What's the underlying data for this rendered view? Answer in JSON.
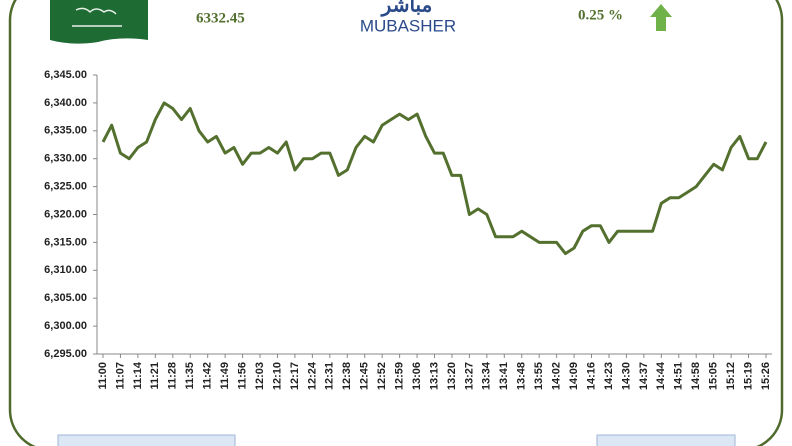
{
  "header": {
    "index_value": "6332.45",
    "logo_arabic": "مباشر",
    "logo_text": "MUBASHER",
    "change": "0.25 %"
  },
  "chart_data": {
    "type": "line",
    "categories": [
      "11:00",
      null,
      "11:07",
      null,
      "11:14",
      null,
      "11:21",
      null,
      "11:28",
      null,
      "11:35",
      null,
      "11:42",
      null,
      "11:49",
      null,
      "11:56",
      null,
      "12:03",
      null,
      "12:10",
      null,
      "12:17",
      null,
      "12:24",
      null,
      "12:31",
      null,
      "12:38",
      null,
      "12:45",
      null,
      "12:52",
      null,
      "12:59",
      null,
      "13:06",
      null,
      "13:13",
      null,
      "13:20",
      null,
      "13:27",
      null,
      "13:34",
      null,
      "13:41",
      null,
      "13:48",
      null,
      "13:55",
      null,
      "14:02",
      null,
      "14:09",
      null,
      "14:16",
      null,
      "14:23",
      null,
      "14:30",
      null,
      "14:37",
      null,
      "14:44",
      null,
      "14:51",
      null,
      "14:58",
      null,
      "15:05",
      null,
      "15:12",
      null,
      "15:19",
      null,
      "15:26"
    ],
    "values": [
      6333,
      6336,
      6331,
      6330,
      6332,
      6333,
      6337,
      6340,
      6339,
      6337,
      6339,
      6335,
      6333,
      6334,
      6331,
      6332,
      6329,
      6331,
      6331,
      6332,
      6331,
      6333,
      6328,
      6330,
      6330,
      6331,
      6331,
      6327,
      6328,
      6332,
      6334,
      6333,
      6336,
      6337,
      6338,
      6337,
      6338,
      6334,
      6331,
      6331,
      6327,
      6327,
      6320,
      6321,
      6320,
      6316,
      6316,
      6316,
      6317,
      6316,
      6315,
      6315,
      6315,
      6313,
      6314,
      6317,
      6318,
      6318,
      6315,
      6317,
      6317,
      6317,
      6317,
      6317,
      6322,
      6323,
      6323,
      6324,
      6325,
      6327,
      6329,
      6328,
      6332,
      6334,
      6330,
      6330,
      6333
    ],
    "color": "#53702f",
    "ylim": [
      6295,
      6345
    ],
    "yticks": [
      {
        "value": 6295,
        "label": "6,295.00"
      },
      {
        "value": 6300,
        "label": "6,300.00"
      },
      {
        "value": 6305,
        "label": "6,305.00"
      },
      {
        "value": 6310,
        "label": "6,310.00"
      },
      {
        "value": 6315,
        "label": "6,315.00"
      },
      {
        "value": 6320,
        "label": "6,320.00"
      },
      {
        "value": 6325,
        "label": "6,325.00"
      },
      {
        "value": 6330,
        "label": "6,330.00"
      },
      {
        "value": 6335,
        "label": "6,335.00"
      },
      {
        "value": 6340,
        "label": "6,340.00"
      },
      {
        "value": 6345,
        "label": "6,345.00"
      }
    ],
    "grid": false
  }
}
